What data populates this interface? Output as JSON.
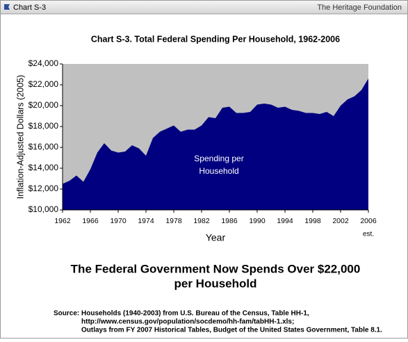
{
  "window": {
    "title": "Chart S-3",
    "brand": "The Heritage Foundation"
  },
  "chart_data": {
    "type": "area",
    "title": "Chart S-3. Total Federal Spending Per Household, 1962-2006",
    "xlabel": "Year",
    "ylabel": "Inflation-Adjusted Dollars (2005)",
    "annotation": [
      "Spending per",
      "Household"
    ],
    "x_note": "est.",
    "x": [
      1962,
      1963,
      1964,
      1965,
      1966,
      1967,
      1968,
      1969,
      1970,
      1971,
      1972,
      1973,
      1974,
      1975,
      1976,
      1977,
      1978,
      1979,
      1980,
      1981,
      1982,
      1983,
      1984,
      1985,
      1986,
      1987,
      1988,
      1989,
      1990,
      1991,
      1992,
      1993,
      1994,
      1995,
      1996,
      1997,
      1998,
      1999,
      2000,
      2001,
      2002,
      2003,
      2004,
      2005,
      2006
    ],
    "values": [
      12500,
      12800,
      13300,
      12700,
      13900,
      15500,
      16400,
      15700,
      15500,
      15600,
      16200,
      15900,
      15200,
      16900,
      17500,
      17800,
      18100,
      17500,
      17700,
      17700,
      18100,
      18900,
      18800,
      19800,
      19900,
      19300,
      19300,
      19400,
      20100,
      20200,
      20100,
      19800,
      19900,
      19600,
      19500,
      19300,
      19300,
      19200,
      19400,
      19000,
      20000,
      20600,
      20900,
      21500,
      22600
    ],
    "color": "#000080",
    "xlim": [
      1962,
      2006
    ],
    "xticks": [
      1962,
      1966,
      1970,
      1974,
      1978,
      1982,
      1986,
      1990,
      1994,
      1998,
      2002,
      2006
    ],
    "ylim": [
      10000,
      24000
    ],
    "yticks": [
      {
        "value": 10000,
        "label": "$10,000"
      },
      {
        "value": 12000,
        "label": "$12,000"
      },
      {
        "value": 14000,
        "label": "$14,000"
      },
      {
        "value": 16000,
        "label": "$16,000"
      },
      {
        "value": 18000,
        "label": "$18,000"
      },
      {
        "value": 20000,
        "label": "$20,000"
      },
      {
        "value": 22000,
        "label": "$22,000"
      },
      {
        "value": 24000,
        "label": "$24,000"
      }
    ]
  },
  "headline": [
    "The Federal Government Now Spends Over $22,000",
    "per Household"
  ],
  "source": {
    "label": "Source:",
    "lines": [
      "Households (1940-2003) from U.S. Bureau of the Census, Table HH-1,",
      "http://www.census.gov/population/socdemo/hh-fam/tabHH-1.xls;",
      "Outlays from FY 2007 Historical Tables, Budget of the United States Government, Table 8.1."
    ]
  }
}
